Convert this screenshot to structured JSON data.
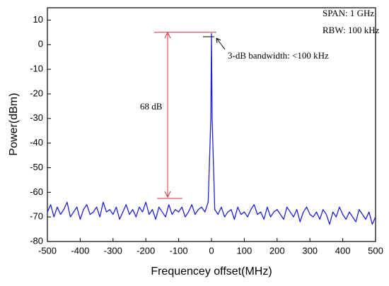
{
  "chart_data": {
    "type": "line",
    "x_label": "Frequencey offset(MHz)",
    "y_label": "Power(dBm)",
    "annotations": [
      "SPAN: 1 GHz",
      "RBW: 100 kHz",
      "3-dB bandwidth: <100 kHz",
      "68 dB"
    ],
    "x": [
      -500,
      -490,
      -480,
      -470,
      -460,
      -450,
      -440,
      -430,
      -420,
      -410,
      -400,
      -390,
      -380,
      -370,
      -360,
      -350,
      -340,
      -330,
      -320,
      -310,
      -300,
      -290,
      -280,
      -270,
      -260,
      -250,
      -240,
      -230,
      -220,
      -210,
      -200,
      -190,
      -180,
      -170,
      -160,
      -150,
      -140,
      -130,
      -120,
      -110,
      -100,
      -90,
      -80,
      -70,
      -60,
      -50,
      -40,
      -30,
      -20,
      -10,
      -2,
      0,
      2,
      10,
      20,
      30,
      40,
      50,
      60,
      70,
      80,
      90,
      100,
      110,
      120,
      130,
      140,
      150,
      160,
      170,
      180,
      190,
      200,
      210,
      220,
      230,
      240,
      250,
      260,
      270,
      280,
      290,
      300,
      310,
      320,
      330,
      340,
      350,
      360,
      370,
      380,
      390,
      400,
      410,
      420,
      430,
      440,
      450,
      460,
      470,
      480,
      490,
      500
    ],
    "series": [
      {
        "name": "Power",
        "color": "#1f1fd6",
        "values": [
          -68,
          -65,
          -70,
          -66,
          -69,
          -67,
          -64,
          -70,
          -68,
          -66,
          -71,
          -67,
          -65,
          -69,
          -68,
          -66,
          -70,
          -64,
          -68,
          -67,
          -69,
          -66,
          -71,
          -68,
          -65,
          -69,
          -67,
          -70,
          -66,
          -68,
          -64,
          -69,
          -67,
          -71,
          -66,
          -68,
          -70,
          -65,
          -69,
          -67,
          -68,
          -66,
          -70,
          -68,
          -65,
          -69,
          -67,
          -66,
          -68,
          -64,
          -30,
          4.5,
          -30,
          -67,
          -69,
          -66,
          -70,
          -68,
          -67,
          -71,
          -66,
          -69,
          -68,
          -70,
          -67,
          -65,
          -69,
          -68,
          -71,
          -66,
          -70,
          -68,
          -67,
          -69,
          -71,
          -66,
          -68,
          -70,
          -67,
          -72,
          -68,
          -66,
          -69,
          -70,
          -68,
          -71,
          -67,
          -69,
          -73,
          -68,
          -70,
          -66,
          -69,
          -71,
          -68,
          -70,
          -72,
          -67,
          -69,
          -71,
          -68,
          -73,
          -70
        ]
      }
    ],
    "xlim": [
      -500,
      500
    ],
    "ylim": [
      -80,
      15
    ],
    "xticks": [
      -500,
      -400,
      -300,
      -200,
      -100,
      0,
      100,
      200,
      300,
      400,
      500
    ],
    "yticks": [
      -80,
      -70,
      -60,
      -50,
      -40,
      -30,
      -20,
      -10,
      0,
      10
    ]
  }
}
